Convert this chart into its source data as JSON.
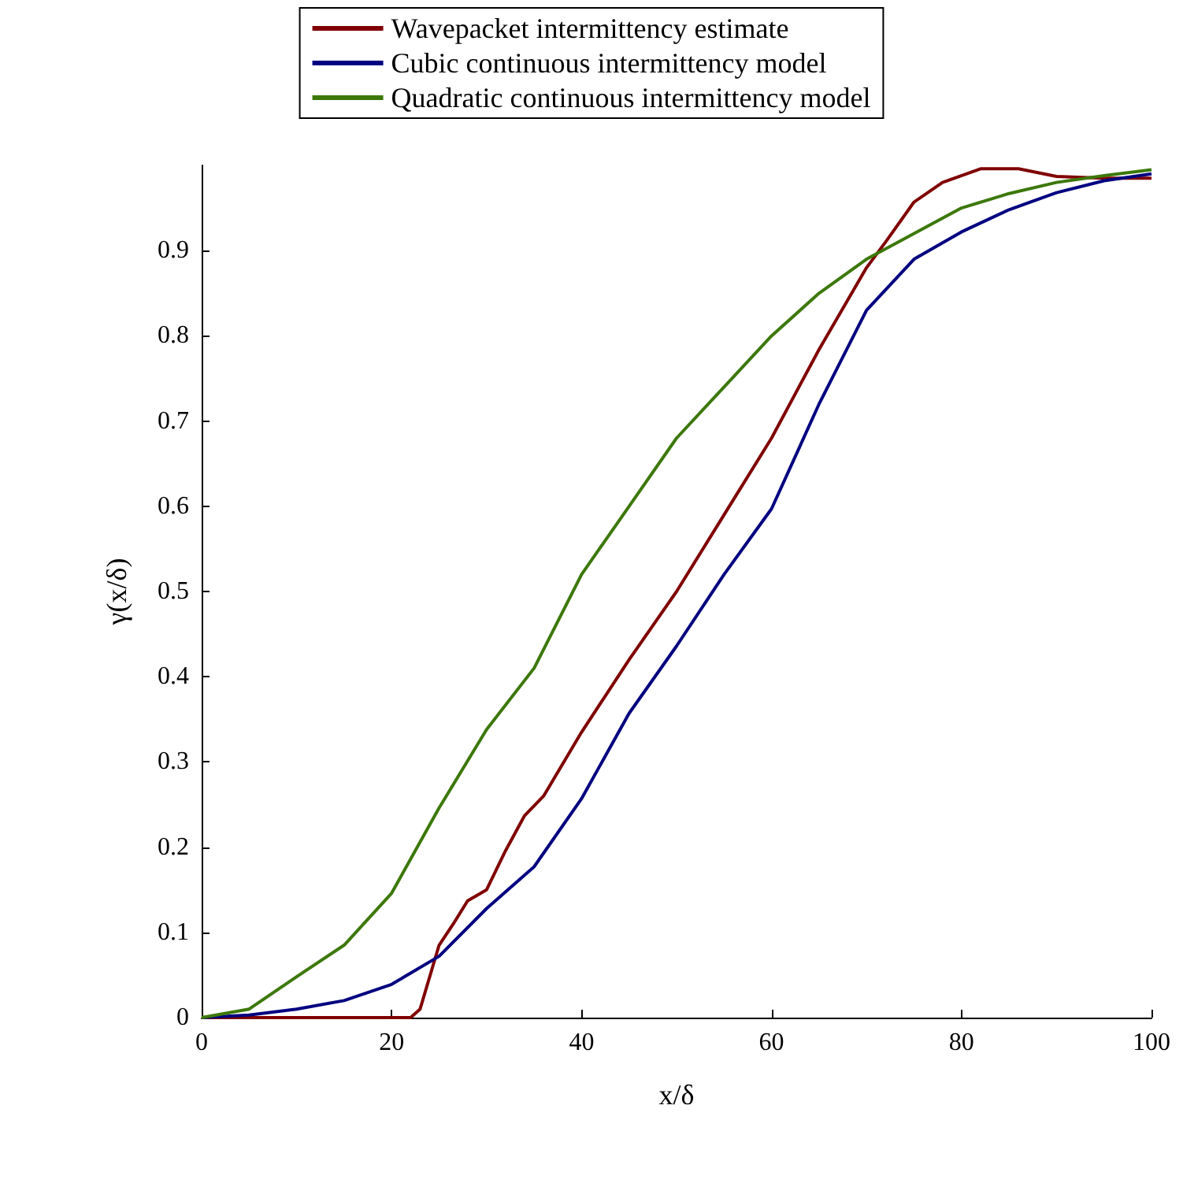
{
  "chart_data": {
    "type": "line",
    "xlabel": "x/δ",
    "ylabel": "γ(x/δ)",
    "xlim": [
      0,
      100
    ],
    "xticks": [
      0,
      20,
      40,
      60,
      80,
      100
    ],
    "ylim": [
      0,
      1
    ],
    "yticks": [
      0,
      0.1,
      0.2,
      0.3,
      0.4,
      0.5,
      0.6,
      0.7,
      0.8,
      0.9
    ],
    "grid": false,
    "legend": "top",
    "marker": "none",
    "line_style": "solid",
    "series": [
      {
        "name": "Wavepacket intermittency estimate",
        "color": "#800000",
        "x": [
          0,
          10,
          20,
          22,
          23,
          25,
          26.5,
          28,
          30,
          32,
          34,
          36,
          40,
          45,
          50,
          55,
          60,
          65,
          70,
          72,
          75,
          78,
          82,
          86,
          90,
          95,
          100
        ],
        "values": [
          0,
          0,
          0,
          0,
          0.01,
          0.085,
          0.11,
          0.137,
          0.15,
          0.196,
          0.237,
          0.26,
          0.335,
          0.42,
          0.5,
          0.59,
          0.68,
          0.784,
          0.88,
          0.91,
          0.957,
          0.98,
          0.996,
          0.996,
          0.987,
          0.985,
          0.985
        ]
      },
      {
        "name": "Cubic continuous intermittency model",
        "color": "#000080",
        "x": [
          0,
          5,
          10,
          15,
          20,
          25,
          30,
          35,
          40,
          45,
          50,
          55,
          60,
          65,
          70,
          75,
          80,
          85,
          90,
          95,
          100
        ],
        "values": [
          0,
          0.003,
          0.01,
          0.02,
          0.039,
          0.072,
          0.128,
          0.177,
          0.257,
          0.357,
          0.436,
          0.52,
          0.597,
          0.72,
          0.83,
          0.89,
          0.922,
          0.948,
          0.968,
          0.982,
          0.99
        ]
      },
      {
        "name": "Quadratic continuous intermittency model",
        "color": "#3c780a",
        "x": [
          0,
          5,
          10,
          15,
          20,
          25,
          30,
          35,
          40,
          45,
          50,
          55,
          60,
          65,
          70,
          75,
          80,
          85,
          90,
          95,
          100
        ],
        "values": [
          0,
          0.01,
          0.048,
          0.085,
          0.146,
          0.246,
          0.338,
          0.41,
          0.52,
          0.6,
          0.68,
          0.74,
          0.8,
          0.85,
          0.89,
          0.92,
          0.95,
          0.967,
          0.98,
          0.988,
          0.995
        ]
      }
    ]
  }
}
